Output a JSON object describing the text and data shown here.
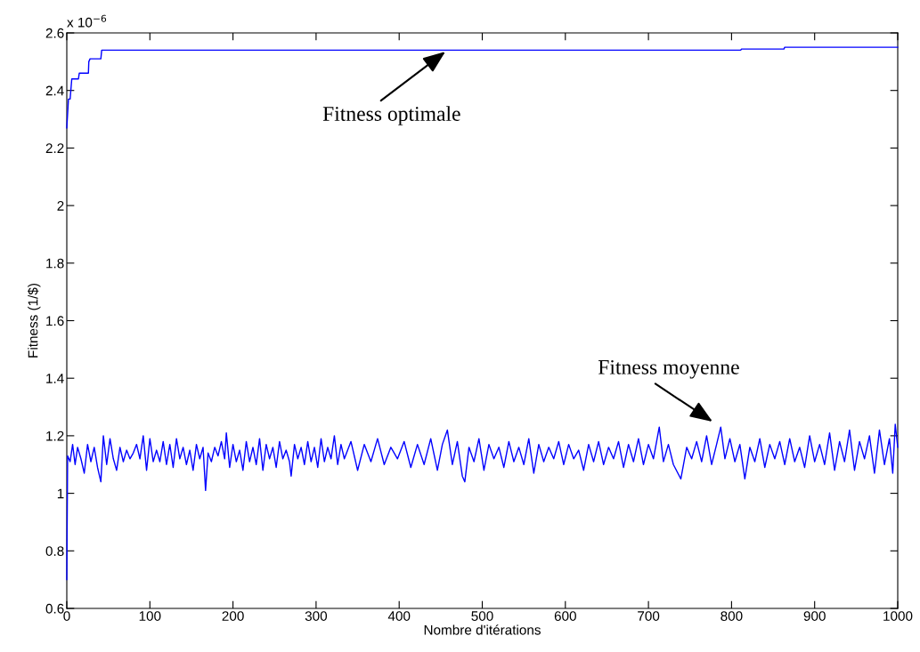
{
  "chart_data": {
    "type": "line",
    "xlabel": "Nombre d'itérations",
    "ylabel": "Fitness (1/$)",
    "xlim": [
      0,
      1000
    ],
    "xticks": [
      0,
      100,
      200,
      300,
      400,
      500,
      600,
      700,
      800,
      900,
      1000
    ],
    "ylim": [
      0.6,
      2.6
    ],
    "yticks": [
      0.6,
      0.8,
      1,
      1.2,
      1.4,
      1.6,
      1.8,
      2,
      2.2,
      2.4,
      2.6
    ],
    "grid": false,
    "legend": false,
    "marker": "none",
    "line_style": "solid",
    "series": [
      {
        "color": "#0000ff",
        "x": [
          0,
          2,
          4,
          6,
          14,
          15,
          26,
          26.5,
          28,
          41,
          42,
          811,
          812,
          863,
          864,
          1000
        ],
        "values": [
          2.27,
          2.37,
          2.37,
          2.44,
          2.44,
          2.46,
          2.46,
          2.5,
          2.51,
          2.51,
          2.54,
          2.54,
          2.544,
          2.544,
          2.55,
          2.55
        ]
      },
      {
        "color": "#0000ff",
        "x": [
          0,
          1,
          4,
          7,
          10,
          13,
          17,
          21,
          25,
          29,
          33,
          37,
          41,
          44,
          48,
          52,
          56,
          60,
          64,
          68,
          72,
          76,
          80,
          84,
          88,
          92,
          96,
          100,
          104,
          108,
          112,
          116,
          120,
          124,
          128,
          132,
          136,
          140,
          144,
          148,
          152,
          156,
          160,
          164,
          167,
          170,
          174,
          178,
          182,
          186,
          190,
          192,
          196,
          200,
          204,
          208,
          212,
          216,
          220,
          224,
          228,
          232,
          236,
          240,
          244,
          248,
          252,
          256,
          260,
          264,
          268,
          270,
          274,
          278,
          282,
          286,
          290,
          294,
          298,
          302,
          306,
          310,
          314,
          318,
          322,
          326,
          330,
          334,
          342,
          350,
          358,
          366,
          374,
          382,
          390,
          398,
          406,
          414,
          422,
          430,
          438,
          446,
          452,
          458,
          464,
          470,
          476,
          479,
          484,
          490,
          496,
          502,
          508,
          514,
          520,
          526,
          532,
          538,
          544,
          550,
          556,
          562,
          568,
          574,
          580,
          586,
          592,
          598,
          604,
          610,
          616,
          622,
          628,
          634,
          640,
          646,
          652,
          658,
          664,
          670,
          676,
          682,
          688,
          694,
          700,
          706,
          713,
          718,
          724,
          730,
          739,
          746,
          752,
          758,
          764,
          770,
          776,
          782,
          787,
          792,
          798,
          804,
          810,
          816,
          822,
          828,
          834,
          840,
          846,
          852,
          858,
          864,
          870,
          876,
          882,
          888,
          894,
          900,
          906,
          912,
          918,
          924,
          930,
          936,
          942,
          948,
          954,
          960,
          966,
          972,
          978,
          984,
          990,
          994,
          997,
          1000
        ],
        "values": [
          0.7,
          1.13,
          1.11,
          1.17,
          1.1,
          1.16,
          1.12,
          1.07,
          1.17,
          1.11,
          1.16,
          1.09,
          1.04,
          1.2,
          1.1,
          1.19,
          1.12,
          1.08,
          1.16,
          1.11,
          1.15,
          1.12,
          1.14,
          1.17,
          1.12,
          1.2,
          1.08,
          1.19,
          1.11,
          1.15,
          1.11,
          1.18,
          1.1,
          1.17,
          1.09,
          1.19,
          1.12,
          1.16,
          1.1,
          1.15,
          1.08,
          1.17,
          1.12,
          1.16,
          1.01,
          1.14,
          1.11,
          1.16,
          1.13,
          1.18,
          1.12,
          1.21,
          1.09,
          1.17,
          1.11,
          1.15,
          1.08,
          1.18,
          1.11,
          1.16,
          1.1,
          1.19,
          1.08,
          1.17,
          1.12,
          1.16,
          1.09,
          1.18,
          1.12,
          1.15,
          1.11,
          1.06,
          1.17,
          1.12,
          1.16,
          1.1,
          1.18,
          1.11,
          1.16,
          1.09,
          1.19,
          1.11,
          1.16,
          1.12,
          1.2,
          1.1,
          1.17,
          1.12,
          1.18,
          1.08,
          1.17,
          1.11,
          1.19,
          1.1,
          1.16,
          1.12,
          1.18,
          1.09,
          1.17,
          1.1,
          1.19,
          1.08,
          1.17,
          1.22,
          1.1,
          1.18,
          1.06,
          1.04,
          1.16,
          1.11,
          1.19,
          1.08,
          1.17,
          1.12,
          1.16,
          1.09,
          1.18,
          1.11,
          1.16,
          1.1,
          1.19,
          1.07,
          1.17,
          1.11,
          1.16,
          1.12,
          1.18,
          1.1,
          1.17,
          1.12,
          1.15,
          1.08,
          1.17,
          1.11,
          1.18,
          1.1,
          1.16,
          1.12,
          1.18,
          1.09,
          1.17,
          1.11,
          1.19,
          1.1,
          1.17,
          1.12,
          1.23,
          1.11,
          1.17,
          1.1,
          1.05,
          1.16,
          1.12,
          1.18,
          1.11,
          1.2,
          1.1,
          1.17,
          1.23,
          1.12,
          1.19,
          1.11,
          1.17,
          1.05,
          1.16,
          1.11,
          1.19,
          1.09,
          1.17,
          1.12,
          1.18,
          1.1,
          1.19,
          1.11,
          1.16,
          1.09,
          1.2,
          1.11,
          1.17,
          1.1,
          1.21,
          1.08,
          1.18,
          1.11,
          1.22,
          1.08,
          1.18,
          1.12,
          1.2,
          1.07,
          1.22,
          1.1,
          1.19,
          1.07,
          1.24,
          1.16
        ]
      }
    ],
    "annotations": [
      {
        "text": "Fitness optimale",
        "x": 458,
        "y": 2.54
      },
      {
        "text": "Fitness moyenne",
        "x": 787,
        "y": 1.23
      },
      "x 10$^{−6}$"
    ]
  }
}
